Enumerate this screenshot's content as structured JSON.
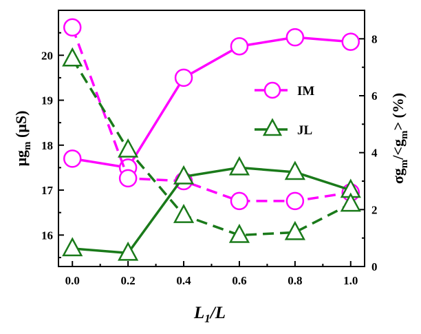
{
  "chart_data": {
    "type": "line",
    "x": [
      0.0,
      0.2,
      0.4,
      0.6,
      0.8,
      1.0
    ],
    "xticks": [
      "0.0",
      "0.2",
      "0.4",
      "0.6",
      "0.8",
      "1.0"
    ],
    "xlim": [
      -0.05,
      1.05
    ],
    "xlabel_main": "L",
    "xlabel_sub": "1",
    "xlabel_rest": "/L",
    "left_axis": {
      "label_prefix": "μg",
      "label_sub": "m",
      "label_suffix": " (μS)",
      "ylim": [
        15.3,
        21.0
      ],
      "ticks": [
        16,
        17,
        18,
        19,
        20
      ],
      "tick_labels": [
        "16",
        "17",
        "18",
        "19",
        "20"
      ]
    },
    "right_axis": {
      "label_parts": [
        "σg",
        "m",
        "/<g",
        "m",
        "> (%)"
      ],
      "ylim": [
        0,
        9.0
      ],
      "ticks": [
        0,
        2,
        4,
        6,
        8
      ],
      "tick_labels": [
        "0",
        "2",
        "4",
        "6",
        "8"
      ]
    },
    "series": [
      {
        "name": "IM",
        "axis": "left",
        "style": "solid",
        "marker": "circle",
        "color": "#ff00ff",
        "values": [
          17.7,
          17.5,
          19.5,
          20.2,
          20.4,
          20.3
        ]
      },
      {
        "name": "IM",
        "axis": "right",
        "style": "dashed",
        "marker": "circle",
        "color": "#ff00ff",
        "values": [
          8.4,
          3.1,
          3.0,
          2.3,
          2.3,
          2.6
        ]
      },
      {
        "name": "JL",
        "axis": "left",
        "style": "solid",
        "marker": "triangle",
        "color": "#1a7a1a",
        "values": [
          15.7,
          15.6,
          17.3,
          17.5,
          17.4,
          17.0
        ]
      },
      {
        "name": "JL",
        "axis": "right",
        "style": "dashed",
        "marker": "triangle",
        "color": "#1a7a1a",
        "values": [
          7.3,
          4.1,
          1.8,
          1.1,
          1.2,
          2.2
        ]
      }
    ],
    "legend": {
      "placement": "center-right",
      "entries": [
        {
          "label": "IM",
          "marker": "circle",
          "color": "#ff00ff"
        },
        {
          "label": "JL",
          "marker": "triangle",
          "color": "#1a7a1a"
        }
      ]
    },
    "grid": false
  }
}
